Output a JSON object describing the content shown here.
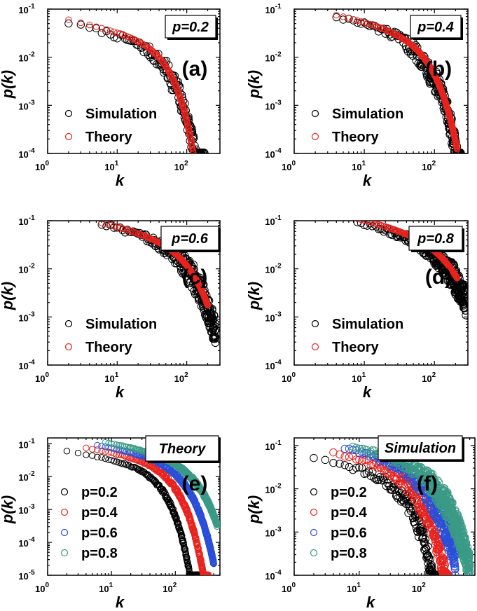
{
  "chart_data": [
    {
      "panel": "(a)",
      "type": "scatter",
      "tag": "p=0.2",
      "xlabel": "k",
      "ylabel": "p(k)",
      "xlim": [
        1,
        300
      ],
      "ylim": [
        0.0001,
        0.1
      ],
      "xticks": [
        {
          "v": 1,
          "m": "10",
          "e": "0"
        },
        {
          "v": 10,
          "m": "10",
          "e": "1"
        },
        {
          "v": 100,
          "m": "10",
          "e": "2"
        }
      ],
      "yticks": [
        {
          "v": 0.1,
          "m": "10",
          "e": "-1"
        },
        {
          "v": 0.01,
          "m": "10",
          "e": "-2"
        },
        {
          "v": 0.001,
          "m": "10",
          "e": "-3"
        },
        {
          "v": 0.0001,
          "m": "10",
          "e": "-4"
        }
      ],
      "series": [
        {
          "name": "Simulation",
          "color": "#000000",
          "kmin": 2,
          "kmax": 180,
          "y0": 0.052,
          "kc": 45,
          "beta": 1.5,
          "noise": 0.18,
          "floor": 0.0001
        },
        {
          "name": "Theory",
          "color": "#e8231e",
          "kmin": 2,
          "kmax": 175,
          "y0": 0.06,
          "kc": 45,
          "beta": 1.6,
          "noise": 0,
          "floor": 0.0001
        }
      ]
    },
    {
      "panel": "(b)",
      "type": "scatter",
      "tag": "p=0.4",
      "xlabel": "k",
      "ylabel": "p(k)",
      "xlim": [
        1,
        300
      ],
      "ylim": [
        0.0001,
        0.1
      ],
      "xticks": [
        {
          "v": 1,
          "m": "10",
          "e": "0"
        },
        {
          "v": 10,
          "m": "10",
          "e": "1"
        },
        {
          "v": 100,
          "m": "10",
          "e": "2"
        }
      ],
      "yticks": [
        {
          "v": 0.1,
          "m": "10",
          "e": "-1"
        },
        {
          "v": 0.01,
          "m": "10",
          "e": "-2"
        },
        {
          "v": 0.001,
          "m": "10",
          "e": "-3"
        },
        {
          "v": 0.0001,
          "m": "10",
          "e": "-4"
        }
      ],
      "series": [
        {
          "name": "Simulation",
          "color": "#000000",
          "kmin": 4,
          "kmax": 240,
          "y0": 0.07,
          "kc": 60,
          "beta": 1.35,
          "noise": 0.2,
          "floor": 0.0001
        },
        {
          "name": "Theory",
          "color": "#e8231e",
          "kmin": 4,
          "kmax": 210,
          "y0": 0.075,
          "kc": 65,
          "beta": 1.4,
          "noise": 0,
          "floor": 0.0001
        }
      ]
    },
    {
      "panel": "(c)",
      "type": "scatter",
      "tag": "p=0.6",
      "xlabel": "k",
      "ylabel": "p(k)",
      "xlim": [
        1,
        300
      ],
      "ylim": [
        0.0001,
        0.1
      ],
      "xticks": [
        {
          "v": 1,
          "m": "10",
          "e": "0"
        },
        {
          "v": 10,
          "m": "10",
          "e": "1"
        },
        {
          "v": 100,
          "m": "10",
          "e": "2"
        }
      ],
      "yticks": [
        {
          "v": 0.1,
          "m": "10",
          "e": "-1"
        },
        {
          "v": 0.01,
          "m": "10",
          "e": "-2"
        },
        {
          "v": 0.001,
          "m": "10",
          "e": "-3"
        },
        {
          "v": 0.0001,
          "m": "10",
          "e": "-4"
        }
      ],
      "series": [
        {
          "name": "Simulation",
          "color": "#000000",
          "kmin": 6,
          "kmax": 260,
          "y0": 0.085,
          "kc": 85,
          "beta": 1.25,
          "noise": 0.22,
          "floor": 0.0001
        },
        {
          "name": "Theory",
          "color": "#e8231e",
          "kmin": 6,
          "kmax": 200,
          "y0": 0.09,
          "kc": 90,
          "beta": 1.3,
          "noise": 0,
          "floor": 0.0001
        }
      ]
    },
    {
      "panel": "(d)",
      "type": "scatter",
      "tag": "p=0.8",
      "xlabel": "k",
      "ylabel": "p(k)",
      "xlim": [
        1,
        300
      ],
      "ylim": [
        0.0001,
        0.1
      ],
      "xticks": [
        {
          "v": 1,
          "m": "10",
          "e": "0"
        },
        {
          "v": 10,
          "m": "10",
          "e": "1"
        },
        {
          "v": 100,
          "m": "10",
          "e": "2"
        }
      ],
      "yticks": [
        {
          "v": 0.1,
          "m": "10",
          "e": "-1"
        },
        {
          "v": 0.01,
          "m": "10",
          "e": "-2"
        },
        {
          "v": 0.001,
          "m": "10",
          "e": "-3"
        },
        {
          "v": 0.0001,
          "m": "10",
          "e": "-4"
        }
      ],
      "series": [
        {
          "name": "Simulation",
          "color": "#000000",
          "kmin": 8,
          "kmax": 280,
          "y0": 0.095,
          "kc": 120,
          "beta": 1.15,
          "noise": 0.22,
          "floor": 0.0001
        },
        {
          "name": "Theory",
          "color": "#e8231e",
          "kmin": 8,
          "kmax": 210,
          "y0": 0.11,
          "kc": 130,
          "beta": 1.2,
          "noise": 0,
          "floor": 0.0001
        }
      ]
    },
    {
      "panel": "(e)",
      "type": "scatter",
      "tag": "Theory",
      "xlabel": "k",
      "ylabel": "p(k)",
      "xlim": [
        1,
        500
      ],
      "ylim": [
        1e-05,
        0.15
      ],
      "xticks": [
        {
          "v": 1,
          "m": "10",
          "e": "0"
        },
        {
          "v": 10,
          "m": "10",
          "e": "1"
        },
        {
          "v": 100,
          "m": "10",
          "e": "2"
        }
      ],
      "yticks": [
        {
          "v": 0.1,
          "m": "10",
          "e": "-1"
        },
        {
          "v": 0.01,
          "m": "10",
          "e": "-2"
        },
        {
          "v": 0.001,
          "m": "10",
          "e": "-3"
        },
        {
          "v": 0.0001,
          "m": "10",
          "e": "-4"
        },
        {
          "v": 1e-05,
          "m": "10",
          "e": "-5"
        }
      ],
      "series": [
        {
          "name": "p=0.2",
          "color": "#000000",
          "kmin": 2,
          "kmax": 260,
          "y0": 0.06,
          "kc": 45,
          "beta": 1.5,
          "noise": 0.05,
          "floor": 1e-05
        },
        {
          "name": "p=0.4",
          "color": "#e8231e",
          "kmin": 4,
          "kmax": 330,
          "y0": 0.075,
          "kc": 65,
          "beta": 1.4,
          "noise": 0.05,
          "floor": 1e-05
        },
        {
          "name": "p=0.6",
          "color": "#2b4fd8",
          "kmin": 6,
          "kmax": 400,
          "y0": 0.09,
          "kc": 90,
          "beta": 1.3,
          "noise": 0.05,
          "floor": 1e-05
        },
        {
          "name": "p=0.8",
          "color": "#3a9a86",
          "kmin": 8,
          "kmax": 450,
          "y0": 0.11,
          "kc": 130,
          "beta": 1.2,
          "noise": 0.05,
          "floor": 1e-05
        }
      ]
    },
    {
      "panel": "(f)",
      "type": "scatter",
      "tag": "Simulation",
      "xlabel": "k",
      "ylabel": "p(k)",
      "xlim": [
        1,
        600
      ],
      "ylim": [
        0.0001,
        0.15
      ],
      "xticks": [
        {
          "v": 1,
          "m": "10",
          "e": "0"
        },
        {
          "v": 10,
          "m": "10",
          "e": "1"
        },
        {
          "v": 100,
          "m": "10",
          "e": "2"
        }
      ],
      "yticks": [
        {
          "v": 0.1,
          "m": "10",
          "e": "-1"
        },
        {
          "v": 0.01,
          "m": "10",
          "e": "-2"
        },
        {
          "v": 0.001,
          "m": "10",
          "e": "-3"
        },
        {
          "v": 0.0001,
          "m": "10",
          "e": "-4"
        }
      ],
      "series": [
        {
          "name": "p=0.2",
          "color": "#000000",
          "kmin": 2,
          "kmax": 180,
          "y0": 0.052,
          "kc": 45,
          "beta": 1.5,
          "noise": 0.2,
          "floor": 0.0001
        },
        {
          "name": "p=0.4",
          "color": "#e8231e",
          "kmin": 4,
          "kmax": 240,
          "y0": 0.07,
          "kc": 60,
          "beta": 1.35,
          "noise": 0.2,
          "floor": 0.0001
        },
        {
          "name": "p=0.6",
          "color": "#2b4fd8",
          "kmin": 6,
          "kmax": 300,
          "y0": 0.085,
          "kc": 85,
          "beta": 1.25,
          "noise": 0.22,
          "floor": 0.0001
        },
        {
          "name": "p=0.8",
          "color": "#3a9a86",
          "kmin": 8,
          "kmax": 500,
          "y0": 0.095,
          "kc": 120,
          "beta": 1.15,
          "noise": 0.24,
          "floor": 0.0001
        }
      ]
    }
  ]
}
